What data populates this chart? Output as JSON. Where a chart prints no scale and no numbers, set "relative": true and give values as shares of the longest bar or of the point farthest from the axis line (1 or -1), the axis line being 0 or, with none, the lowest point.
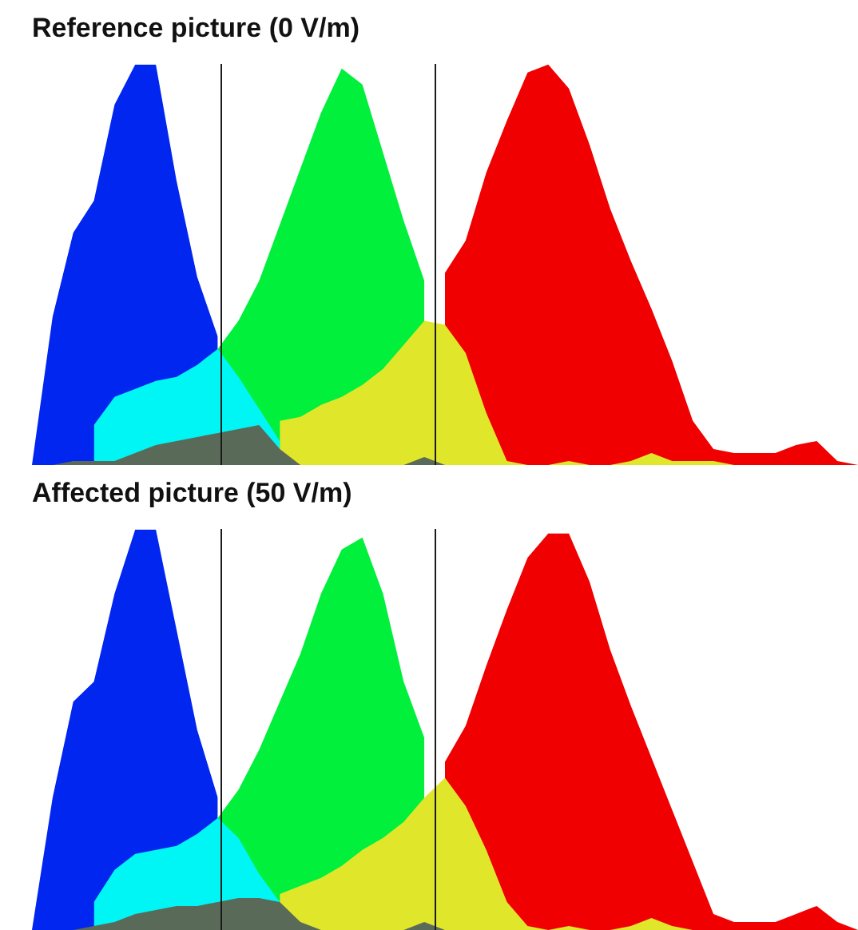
{
  "chart_data": [
    {
      "type": "area",
      "title": "Reference picture (0 V/m)",
      "relative": true,
      "tick_labels": false,
      "legend": false,
      "categories": [
        null,
        null,
        null,
        null,
        null,
        null,
        null,
        null,
        null,
        null,
        null,
        null,
        null,
        null,
        null,
        null,
        null,
        null,
        null,
        null,
        null,
        null,
        null,
        null,
        null,
        null,
        null,
        null,
        null,
        null,
        null,
        null,
        null,
        null,
        null,
        null,
        null,
        null,
        null,
        null,
        null
      ],
      "series": [
        {
          "color": "#0026f0",
          "values": [
            0,
            0.37,
            0.58,
            0.66,
            0.9,
            1,
            1,
            0.71,
            0.47,
            0.32,
            null,
            null,
            null,
            null,
            null,
            null,
            null,
            null,
            null,
            null,
            null,
            null,
            null,
            null,
            null,
            null,
            null,
            null,
            null,
            null,
            null,
            null,
            null,
            null,
            null,
            null,
            null,
            null,
            null,
            null,
            null
          ]
        },
        {
          "color": "#00f03c",
          "values": [
            null,
            null,
            null,
            null,
            null,
            null,
            null,
            null,
            null,
            0.29,
            0.36,
            0.46,
            0.6,
            0.74,
            0.88,
            0.99,
            0.95,
            0.78,
            0.61,
            0.46,
            null,
            null,
            null,
            null,
            null,
            null,
            null,
            null,
            null,
            null,
            null,
            null,
            null,
            null,
            null,
            null,
            null,
            null,
            null,
            null,
            null
          ]
        },
        {
          "color": "#f00000",
          "values": [
            null,
            null,
            null,
            null,
            null,
            null,
            null,
            null,
            null,
            null,
            null,
            null,
            null,
            null,
            null,
            null,
            null,
            null,
            null,
            null,
            0.48,
            0.56,
            0.73,
            0.86,
            0.98,
            1,
            0.94,
            0.8,
            0.64,
            0.51,
            0.39,
            0.26,
            0.11,
            0.04,
            0.03,
            0.03,
            0.03,
            0.05,
            0.06,
            0.01,
            0
          ]
        },
        {
          "color": "#00f5f5",
          "values": [
            null,
            null,
            null,
            0.1,
            0.17,
            0.19,
            0.21,
            0.22,
            0.25,
            0.29,
            0.22,
            0.14,
            0.06,
            null,
            null,
            null,
            null,
            null,
            null,
            null,
            null,
            null,
            null,
            null,
            null,
            null,
            null,
            null,
            null,
            null,
            null,
            null,
            null,
            null,
            null,
            null,
            null,
            null,
            null,
            null,
            null
          ]
        },
        {
          "color": "#e0e62a",
          "values": [
            null,
            null,
            null,
            null,
            null,
            null,
            null,
            null,
            null,
            null,
            null,
            null,
            0.11,
            0.12,
            0.15,
            0.17,
            0.2,
            0.24,
            0.3,
            0.36,
            0.35,
            0.28,
            0.13,
            0.01,
            0,
            0,
            0.01,
            0,
            0,
            0.01,
            0.03,
            0.01,
            0.01,
            0.01,
            0,
            null,
            null,
            null,
            null,
            null,
            null
          ]
        },
        {
          "color": "#5a6a58",
          "values": [
            null,
            0,
            0.01,
            0.01,
            0.01,
            0.03,
            0.05,
            0.06,
            0.07,
            0.08,
            0.09,
            0.1,
            0.04,
            0,
            null,
            null,
            null,
            null,
            0,
            0.02,
            0,
            null,
            null,
            null,
            null,
            null,
            null,
            null,
            null,
            null,
            null,
            null,
            null,
            null,
            null,
            null,
            null,
            null,
            null,
            null,
            null
          ]
        }
      ]
    },
    {
      "type": "area",
      "title": "Affected picture (50 V/m)",
      "relative": true,
      "tick_labels": false,
      "legend": false,
      "categories": [
        null,
        null,
        null,
        null,
        null,
        null,
        null,
        null,
        null,
        null,
        null,
        null,
        null,
        null,
        null,
        null,
        null,
        null,
        null,
        null,
        null,
        null,
        null,
        null,
        null,
        null,
        null,
        null,
        null,
        null,
        null,
        null,
        null,
        null,
        null,
        null,
        null,
        null,
        null,
        null,
        null
      ],
      "series": [
        {
          "color": "#0026f0",
          "values": [
            0,
            0.33,
            0.57,
            0.62,
            0.84,
            1,
            1,
            0.75,
            0.5,
            0.33,
            null,
            null,
            null,
            null,
            null,
            null,
            null,
            null,
            null,
            null,
            null,
            null,
            null,
            null,
            null,
            null,
            null,
            null,
            null,
            null,
            null,
            null,
            null,
            null,
            null,
            null,
            null,
            null,
            null,
            null,
            null
          ]
        },
        {
          "color": "#00f03c",
          "values": [
            null,
            null,
            null,
            null,
            null,
            null,
            null,
            null,
            null,
            0.28,
            0.35,
            0.45,
            0.57,
            0.69,
            0.84,
            0.95,
            0.98,
            0.84,
            0.62,
            0.48,
            null,
            null,
            null,
            null,
            null,
            null,
            null,
            null,
            null,
            null,
            null,
            null,
            null,
            null,
            null,
            null,
            null,
            null,
            null,
            null,
            null
          ]
        },
        {
          "color": "#f00000",
          "values": [
            null,
            null,
            null,
            null,
            null,
            null,
            null,
            null,
            null,
            null,
            null,
            null,
            null,
            null,
            null,
            null,
            null,
            null,
            null,
            null,
            0.42,
            0.51,
            0.66,
            0.8,
            0.93,
            0.99,
            0.99,
            0.87,
            0.7,
            0.56,
            0.43,
            0.3,
            0.17,
            0.04,
            0.02,
            0.02,
            0.02,
            0.04,
            0.06,
            0.02,
            0
          ]
        },
        {
          "color": "#00f5f5",
          "values": [
            null,
            null,
            null,
            0.07,
            0.15,
            0.19,
            0.2,
            0.21,
            0.24,
            0.28,
            0.23,
            0.14,
            0.07,
            null,
            null,
            null,
            null,
            null,
            null,
            null,
            null,
            null,
            null,
            null,
            null,
            null,
            null,
            null,
            null,
            null,
            null,
            null,
            null,
            null,
            null,
            null,
            null,
            null,
            null,
            null,
            null
          ]
        },
        {
          "color": "#e0e62a",
          "values": [
            null,
            null,
            null,
            null,
            null,
            null,
            null,
            null,
            null,
            null,
            null,
            null,
            0.09,
            0.11,
            0.13,
            0.16,
            0.2,
            0.23,
            0.27,
            0.33,
            0.38,
            0.31,
            0.2,
            0.07,
            0.01,
            0,
            0.01,
            0,
            0,
            0.01,
            0.03,
            0.01,
            0,
            null,
            null,
            null,
            null,
            null,
            null,
            null,
            null
          ]
        },
        {
          "color": "#5a6a58",
          "values": [
            null,
            null,
            0,
            0.01,
            0.02,
            0.04,
            0.05,
            0.06,
            0.06,
            0.07,
            0.08,
            0.08,
            0.07,
            0.02,
            0,
            null,
            null,
            null,
            0,
            0.02,
            0,
            null,
            null,
            null,
            null,
            null,
            null,
            null,
            null,
            null,
            null,
            null,
            null,
            null,
            null,
            null,
            null,
            null,
            null,
            null,
            null
          ]
        }
      ]
    }
  ]
}
